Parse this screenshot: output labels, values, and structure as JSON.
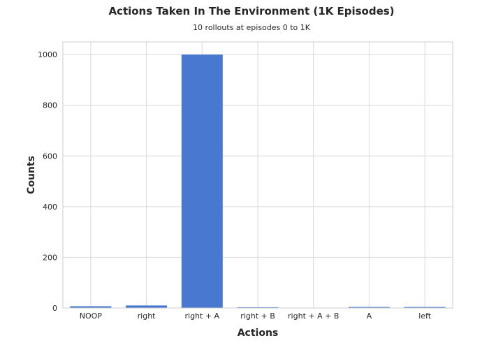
{
  "chart_data": {
    "type": "bar",
    "title": "Actions Taken In The Environment (1K Episodes)",
    "subtitle": "10 rollouts at episodes 0 to 1K",
    "xlabel": "Actions",
    "ylabel": "Counts",
    "categories": [
      "NOOP",
      "right",
      "right + A",
      "right + B",
      "right + A + B",
      "A",
      "left"
    ],
    "values": [
      7,
      10,
      1000,
      3,
      0,
      4,
      4
    ],
    "ylim": [
      0,
      1050
    ],
    "yticks": [
      0,
      200,
      400,
      600,
      800,
      1000
    ],
    "grid": true,
    "bar_color": "#4878d0"
  }
}
